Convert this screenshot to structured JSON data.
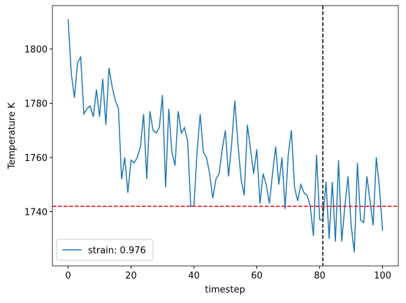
{
  "chart_data": {
    "type": "line",
    "xlabel": "timestep",
    "ylabel": "Temperature K",
    "x": [
      0,
      1,
      2,
      3,
      4,
      5,
      6,
      7,
      8,
      9,
      10,
      11,
      12,
      13,
      14,
      15,
      16,
      17,
      18,
      19,
      20,
      21,
      22,
      23,
      24,
      25,
      26,
      27,
      28,
      29,
      30,
      31,
      32,
      33,
      34,
      35,
      36,
      37,
      38,
      39,
      40,
      41,
      42,
      43,
      44,
      45,
      46,
      47,
      48,
      49,
      50,
      51,
      52,
      53,
      54,
      55,
      56,
      57,
      58,
      59,
      60,
      61,
      62,
      63,
      64,
      65,
      66,
      67,
      68,
      69,
      70,
      71,
      72,
      73,
      74,
      75,
      76,
      77,
      78,
      79,
      80,
      81,
      82,
      83,
      84,
      85,
      86,
      87,
      88,
      89,
      90,
      91,
      92,
      93,
      94,
      95,
      96,
      97,
      98,
      99,
      100
    ],
    "series": [
      {
        "name": "strain: 0.976",
        "color": "#1f77b4",
        "values": [
          1811,
          1791,
          1782,
          1795,
          1797,
          1776,
          1778,
          1779,
          1775,
          1785,
          1775,
          1789,
          1772,
          1793,
          1786,
          1781,
          1778,
          1752,
          1760,
          1747,
          1759,
          1758,
          1760,
          1764,
          1776,
          1752,
          1777,
          1770,
          1769,
          1771,
          1783,
          1749,
          1778,
          1762,
          1757,
          1777,
          1769,
          1771,
          1766,
          1742,
          1742,
          1762,
          1776,
          1762,
          1760,
          1754,
          1745,
          1752,
          1754,
          1763,
          1770,
          1753,
          1765,
          1781,
          1765,
          1752,
          1746,
          1772,
          1763,
          1754,
          1763,
          1743,
          1754,
          1750,
          1743,
          1754,
          1764,
          1750,
          1760,
          1741,
          1761,
          1770,
          1749,
          1744,
          1750,
          1747,
          1746,
          1742,
          1731,
          1761,
          1737,
          1737,
          1751,
          1730,
          1751,
          1729,
          1759,
          1729,
          1742,
          1753,
          1735,
          1725,
          1758,
          1737,
          1736,
          1753,
          1744,
          1735,
          1760,
          1749,
          1733
        ]
      }
    ],
    "xlim": [
      -5,
      105
    ],
    "xticks": [
      0,
      20,
      40,
      60,
      80,
      100
    ],
    "ylim": [
      1720,
      1816
    ],
    "yticks": [
      1740,
      1760,
      1780,
      1800
    ],
    "hlines": [
      {
        "value": 1742,
        "color": "#e00000"
      }
    ],
    "vlines": [
      {
        "value": 81,
        "color": "#000000"
      }
    ],
    "legend": "lower left"
  }
}
